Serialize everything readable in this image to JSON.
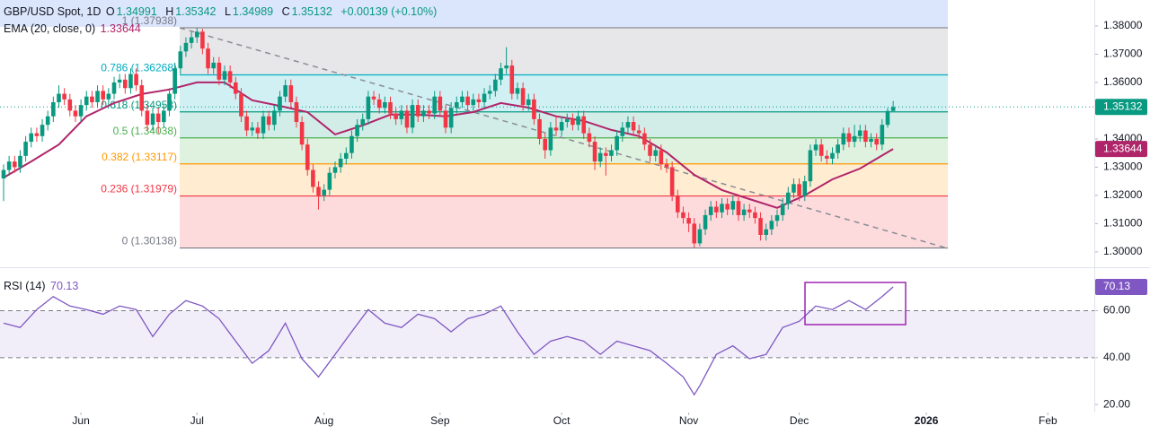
{
  "chart_data": {
    "type": "candlestick",
    "legend": {
      "symbol": "GBP/USD Spot, 1D",
      "open_label": "O",
      "high_label": "H",
      "low_label": "L",
      "close_label": "C",
      "change": "+0.00139 (+0.10%)"
    },
    "up_color": "#089981",
    "down_color": "#f23645",
    "xlim": [
      -0.65,
      197.4
    ],
    "xticks": [
      {
        "value": 14,
        "label": "Jun"
      },
      {
        "value": 35,
        "label": "Jul"
      },
      {
        "value": 58,
        "label": "Aug"
      },
      {
        "value": 79,
        "label": "Sep"
      },
      {
        "value": 101,
        "label": "Oct"
      },
      {
        "value": 124,
        "label": "Nov"
      },
      {
        "value": 144,
        "label": "Dec"
      },
      {
        "value": 167,
        "label": "2026",
        "bold": true
      },
      {
        "value": 189,
        "label": "Feb"
      }
    ],
    "ylim": [
      1.2952,
      1.3892
    ],
    "yticks": [
      {
        "value": 1.38,
        "label": "1.38000"
      },
      {
        "value": 1.37,
        "label": "1.37000"
      },
      {
        "value": 1.36,
        "label": "1.36000"
      },
      {
        "value": 1.35,
        "label": "1.35000"
      },
      {
        "value": 1.34,
        "label": "1.34000"
      },
      {
        "value": 1.33,
        "label": "1.33000"
      },
      {
        "value": 1.32,
        "label": "1.32000"
      },
      {
        "value": 1.31,
        "label": "1.31000"
      },
      {
        "value": 1.3,
        "label": "1.30000"
      }
    ],
    "open": [
      1.326,
      1.329,
      1.332,
      1.33,
      1.334,
      1.339,
      1.342,
      1.341,
      1.345,
      1.348,
      1.353,
      1.356,
      1.354,
      1.35,
      1.348,
      1.352,
      1.355,
      1.353,
      1.357,
      1.354,
      1.356,
      1.36,
      1.361,
      1.358,
      1.363,
      1.359,
      1.35,
      1.345,
      1.349,
      1.346,
      1.35,
      1.356,
      1.365,
      1.371,
      1.374,
      1.376,
      1.378,
      1.372,
      1.365,
      1.367,
      1.361,
      1.364,
      1.36,
      1.356,
      1.348,
      1.343,
      1.344,
      1.342,
      1.348,
      1.345,
      1.35,
      1.355,
      1.359,
      1.353,
      1.346,
      1.338,
      1.329,
      1.323,
      1.32,
      1.322,
      1.328,
      1.33,
      1.333,
      1.335,
      1.341,
      1.345,
      1.347,
      1.355,
      1.354,
      1.351,
      1.353,
      1.349,
      1.347,
      1.35,
      1.344,
      1.352,
      1.348,
      1.35,
      1.349,
      1.355,
      1.35,
      1.344,
      1.351,
      1.353,
      1.355,
      1.352,
      1.354,
      1.353,
      1.356,
      1.357,
      1.361,
      1.365,
      1.366,
      1.356,
      1.358,
      1.352,
      1.354,
      1.347,
      1.34,
      1.336,
      1.344,
      1.343,
      1.346,
      1.347,
      1.345,
      1.348,
      1.342,
      1.339,
      1.332,
      1.335,
      1.334,
      1.336,
      1.341,
      1.344,
      1.346,
      1.343,
      1.342,
      1.338,
      1.334,
      1.336,
      1.331,
      1.33,
      1.32,
      1.314,
      1.312,
      1.31,
      1.303,
      1.308,
      1.313,
      1.316,
      1.314,
      1.317,
      1.315,
      1.318,
      1.313,
      1.315,
      1.314,
      1.312,
      1.306,
      1.308,
      1.311,
      1.313,
      1.317,
      1.321,
      1.324,
      1.32,
      1.325,
      1.336,
      1.338,
      1.334,
      1.333,
      1.335,
      1.338,
      1.342,
      1.339,
      1.341,
      1.343,
      1.339,
      1.34,
      1.338,
      1.345,
      1.34991
    ],
    "high": [
      1.331,
      1.334,
      1.334,
      1.336,
      1.341,
      1.344,
      1.344,
      1.347,
      1.35,
      1.355,
      1.359,
      1.358,
      1.356,
      1.352,
      1.354,
      1.357,
      1.357,
      1.359,
      1.359,
      1.358,
      1.362,
      1.363,
      1.363,
      1.365,
      1.365,
      1.361,
      1.352,
      1.351,
      1.351,
      1.352,
      1.358,
      1.367,
      1.373,
      1.376,
      1.378,
      1.3794,
      1.379,
      1.374,
      1.369,
      1.369,
      1.366,
      1.366,
      1.362,
      1.358,
      1.35,
      1.346,
      1.346,
      1.35,
      1.35,
      1.352,
      1.357,
      1.361,
      1.361,
      1.355,
      1.348,
      1.34,
      1.331,
      1.325,
      1.324,
      1.33,
      1.332,
      1.335,
      1.337,
      1.343,
      1.347,
      1.349,
      1.357,
      1.357,
      1.356,
      1.355,
      1.355,
      1.351,
      1.352,
      1.352,
      1.354,
      1.354,
      1.352,
      1.352,
      1.357,
      1.357,
      1.352,
      1.353,
      1.355,
      1.357,
      1.357,
      1.356,
      1.356,
      1.358,
      1.359,
      1.363,
      1.367,
      1.3725,
      1.368,
      1.36,
      1.36,
      1.356,
      1.356,
      1.349,
      1.342,
      1.346,
      1.348,
      1.348,
      1.349,
      1.349,
      1.35,
      1.35,
      1.344,
      1.341,
      1.337,
      1.337,
      1.338,
      1.343,
      1.346,
      1.348,
      1.348,
      1.345,
      1.344,
      1.34,
      1.338,
      1.338,
      1.333,
      1.332,
      1.322,
      1.316,
      1.314,
      1.312,
      1.31,
      1.315,
      1.318,
      1.318,
      1.319,
      1.319,
      1.32,
      1.32,
      1.317,
      1.317,
      1.316,
      1.314,
      1.31,
      1.313,
      1.315,
      1.319,
      1.323,
      1.326,
      1.326,
      1.327,
      1.338,
      1.34,
      1.34,
      1.336,
      1.337,
      1.34,
      1.344,
      1.344,
      1.345,
      1.345,
      1.345,
      1.342,
      1.342,
      1.347,
      1.351,
      1.35342
    ],
    "low": [
      1.318,
      1.327,
      1.328,
      1.328,
      1.332,
      1.337,
      1.339,
      1.339,
      1.343,
      1.346,
      1.351,
      1.352,
      1.348,
      1.346,
      1.346,
      1.35,
      1.351,
      1.351,
      1.352,
      1.352,
      1.354,
      1.358,
      1.356,
      1.356,
      1.357,
      1.348,
      1.343,
      1.343,
      1.342,
      1.344,
      1.348,
      1.354,
      1.363,
      1.369,
      1.372,
      1.374,
      1.37,
      1.363,
      1.363,
      1.359,
      1.359,
      1.358,
      1.354,
      1.346,
      1.341,
      1.341,
      1.34,
      1.34,
      1.343,
      1.343,
      1.348,
      1.353,
      1.351,
      1.344,
      1.336,
      1.327,
      1.321,
      1.315,
      1.318,
      1.32,
      1.326,
      1.328,
      1.331,
      1.333,
      1.339,
      1.343,
      1.345,
      1.352,
      1.349,
      1.349,
      1.347,
      1.345,
      1.345,
      1.342,
      1.342,
      1.346,
      1.346,
      1.347,
      1.347,
      1.348,
      1.342,
      1.342,
      1.349,
      1.351,
      1.35,
      1.35,
      1.351,
      1.351,
      1.354,
      1.355,
      1.359,
      1.363,
      1.354,
      1.354,
      1.35,
      1.35,
      1.345,
      1.338,
      1.333,
      1.334,
      1.341,
      1.341,
      1.344,
      1.343,
      1.343,
      1.34,
      1.337,
      1.329,
      1.33,
      1.327,
      1.332,
      1.334,
      1.339,
      1.342,
      1.341,
      1.34,
      1.336,
      1.332,
      1.332,
      1.329,
      1.328,
      1.318,
      1.312,
      1.31,
      1.307,
      1.3014,
      1.302,
      1.306,
      1.311,
      1.312,
      1.312,
      1.313,
      1.313,
      1.311,
      1.311,
      1.312,
      1.31,
      1.304,
      1.304,
      1.306,
      1.309,
      1.311,
      1.315,
      1.319,
      1.318,
      1.318,
      1.323,
      1.334,
      1.332,
      1.331,
      1.331,
      1.333,
      1.336,
      1.337,
      1.337,
      1.339,
      1.337,
      1.337,
      1.336,
      1.336,
      1.344,
      1.34989
    ],
    "close": [
      1.329,
      1.332,
      1.33,
      1.334,
      1.339,
      1.342,
      1.341,
      1.345,
      1.348,
      1.353,
      1.356,
      1.354,
      1.35,
      1.348,
      1.352,
      1.355,
      1.353,
      1.357,
      1.354,
      1.356,
      1.36,
      1.361,
      1.358,
      1.363,
      1.359,
      1.35,
      1.345,
      1.349,
      1.346,
      1.35,
      1.356,
      1.365,
      1.371,
      1.374,
      1.376,
      1.378,
      1.372,
      1.365,
      1.367,
      1.361,
      1.364,
      1.36,
      1.356,
      1.348,
      1.343,
      1.344,
      1.342,
      1.348,
      1.345,
      1.35,
      1.355,
      1.359,
      1.353,
      1.346,
      1.338,
      1.329,
      1.323,
      1.32,
      1.322,
      1.328,
      1.33,
      1.333,
      1.335,
      1.341,
      1.345,
      1.347,
      1.355,
      1.354,
      1.351,
      1.353,
      1.349,
      1.347,
      1.35,
      1.344,
      1.352,
      1.348,
      1.35,
      1.349,
      1.355,
      1.35,
      1.344,
      1.351,
      1.353,
      1.355,
      1.352,
      1.354,
      1.353,
      1.356,
      1.357,
      1.361,
      1.365,
      1.366,
      1.356,
      1.358,
      1.352,
      1.354,
      1.347,
      1.34,
      1.336,
      1.344,
      1.343,
      1.346,
      1.347,
      1.345,
      1.348,
      1.342,
      1.339,
      1.332,
      1.335,
      1.334,
      1.336,
      1.341,
      1.344,
      1.346,
      1.343,
      1.342,
      1.338,
      1.334,
      1.336,
      1.331,
      1.33,
      1.32,
      1.314,
      1.312,
      1.31,
      1.303,
      1.308,
      1.313,
      1.316,
      1.314,
      1.317,
      1.315,
      1.318,
      1.313,
      1.315,
      1.314,
      1.312,
      1.306,
      1.308,
      1.311,
      1.313,
      1.317,
      1.321,
      1.324,
      1.32,
      1.325,
      1.336,
      1.338,
      1.334,
      1.333,
      1.335,
      1.338,
      1.342,
      1.339,
      1.341,
      1.343,
      1.339,
      1.34,
      1.338,
      1.345,
      1.34991,
      1.35132
    ],
    "ema": {
      "name": "EMA (20, close, 0)",
      "color": "#b0256a",
      "x": [
        0,
        5,
        10,
        15,
        20,
        25,
        30,
        35,
        40,
        45,
        50,
        55,
        60,
        65,
        70,
        75,
        80,
        85,
        90,
        95,
        100,
        105,
        110,
        115,
        120,
        125,
        130,
        135,
        140,
        145,
        150,
        155,
        161
      ],
      "values": [
        1.3263,
        1.332,
        1.338,
        1.348,
        1.3527,
        1.3559,
        1.3575,
        1.36,
        1.36,
        1.3537,
        1.3517,
        1.3495,
        1.3416,
        1.3448,
        1.3486,
        1.3486,
        1.348,
        1.3495,
        1.3527,
        1.3511,
        1.348,
        1.3464,
        1.3432,
        1.341,
        1.3352,
        1.3273,
        1.3219,
        1.3187,
        1.3156,
        1.32,
        1.3257,
        1.3295,
        1.33644
      ]
    },
    "fib": {
      "levels": [
        {
          "price": 1.37938,
          "label": "1 (1.37938)",
          "color": "#787b86"
        },
        {
          "price": 1.36268,
          "label": "0.786 (1.36268)",
          "color": "#00acc1"
        },
        {
          "price": 1.34958,
          "label": "0.618 (1.34958)",
          "color": "#089981"
        },
        {
          "price": 1.34038,
          "label": "0.5 (1.34038)",
          "color": "#4caf50"
        },
        {
          "price": 1.33117,
          "label": "0.382 (1.33117)",
          "color": "#ff9800"
        },
        {
          "price": 1.31979,
          "label": "0.236 (1.31979)",
          "color": "#f23645"
        },
        {
          "price": 1.30138,
          "label": "0 (1.30138)",
          "color": "#787b86"
        }
      ]
    },
    "rsi": {
      "name": "RSI (14)",
      "color": "#7e57c2",
      "ylim": [
        17,
        77
      ],
      "yticks": [
        {
          "value": 60,
          "label": "60.00"
        },
        {
          "value": 40,
          "label": "40.00"
        },
        {
          "value": 20,
          "label": "20.00"
        }
      ],
      "bands": {
        "upper": 60,
        "lower": 40
      },
      "x": [
        0,
        3,
        6,
        9,
        12,
        15,
        18,
        21,
        24,
        27,
        30,
        33,
        36,
        39,
        42,
        45,
        48,
        51,
        54,
        57,
        60,
        63,
        66,
        69,
        72,
        75,
        78,
        81,
        84,
        87,
        90,
        93,
        96,
        99,
        102,
        105,
        108,
        111,
        114,
        117,
        120,
        123,
        125,
        126,
        129,
        132,
        135,
        138,
        141,
        144,
        147,
        150,
        153,
        156,
        159,
        161
      ],
      "values": [
        54.7,
        52.8,
        60.5,
        66,
        62,
        60.5,
        58.5,
        62,
        60.5,
        49,
        58.5,
        64.3,
        62,
        56.6,
        47,
        37.6,
        43,
        54.7,
        39.5,
        31.8,
        41.4,
        51,
        60.5,
        54.7,
        52.8,
        58.5,
        56.6,
        51,
        56.6,
        58.5,
        62,
        51,
        41.4,
        47,
        49,
        47,
        41.4,
        47,
        45,
        43,
        37.6,
        31.8,
        24.2,
        28,
        41.4,
        45,
        39.5,
        41.4,
        52.8,
        55.5,
        62,
        60.5,
        64.3,
        60.5,
        66,
        70.13
      ]
    }
  }
}
